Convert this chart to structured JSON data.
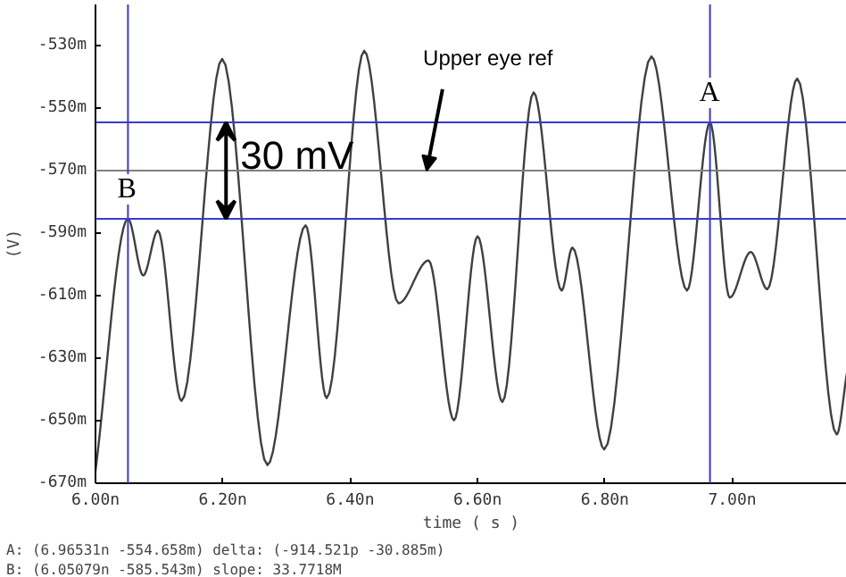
{
  "chart_data": {
    "type": "line",
    "xlabel": "time ( s )",
    "ylabel": "(V)",
    "xlim": [
      6.0,
      7.18
    ],
    "ylim": [
      -670,
      -517
    ],
    "xticks": [
      {
        "value": 6.0,
        "label": "6.00n"
      },
      {
        "value": 6.2,
        "label": "6.20n"
      },
      {
        "value": 6.4,
        "label": "6.40n"
      },
      {
        "value": 6.6,
        "label": "6.60n"
      },
      {
        "value": 6.8,
        "label": "6.80n"
      },
      {
        "value": 7.0,
        "label": "7.00n"
      }
    ],
    "yticks": [
      {
        "value": -530,
        "label": "-530m"
      },
      {
        "value": -550,
        "label": "-550m"
      },
      {
        "value": -570,
        "label": "-570m"
      },
      {
        "value": -590,
        "label": "-590m"
      },
      {
        "value": -610,
        "label": "-610m"
      },
      {
        "value": -630,
        "label": "-630m"
      },
      {
        "value": -650,
        "label": "-650m"
      },
      {
        "value": -670,
        "label": "-670m"
      }
    ],
    "series": [
      {
        "color": "#404040",
        "x": [
          6.0,
          6.051,
          6.075,
          6.098,
          6.135,
          6.199,
          6.27,
          6.33,
          6.363,
          6.422,
          6.476,
          6.523,
          6.563,
          6.6,
          6.639,
          6.688,
          6.732,
          6.749,
          6.799,
          6.873,
          6.929,
          6.965,
          6.996,
          7.029,
          7.055,
          7.102,
          7.164,
          7.18
        ],
        "values": [
          -666,
          -585.5,
          -603.6,
          -589.3,
          -643.7,
          -534.4,
          -664.2,
          -587.6,
          -642.8,
          -531.8,
          -612.5,
          -598.8,
          -649.9,
          -591.1,
          -644,
          -545.1,
          -608.4,
          -594.7,
          -659.2,
          -533.6,
          -608.4,
          -554.7,
          -610.7,
          -596.1,
          -608,
          -540.7,
          -654.4,
          -634.8
        ]
      }
    ],
    "ref_lines": [
      {
        "axis": "y",
        "value": -554.7,
        "color": "#3a3ad0"
      },
      {
        "axis": "y",
        "value": -585.5,
        "color": "#3a3ad0"
      },
      {
        "axis": "y",
        "value": -570.1,
        "color": "#808080"
      },
      {
        "axis": "x",
        "value": 6.051,
        "color": "#3a3ad0"
      },
      {
        "axis": "x",
        "value": 6.965,
        "color": "#3a3ad0"
      }
    ],
    "annotations": [
      {
        "text": "Upper eye ref",
        "x": 6.52,
        "y": -570.1
      },
      {
        "text": "30 mV",
        "x": 6.205,
        "y": -570.1
      },
      {
        "text": "A",
        "x": 6.965,
        "y": -554.7
      },
      {
        "text": "B",
        "x": 6.051,
        "y": -585.5
      },
      "A: (6.96531n -554.658m)      delta: (-914.521p -30.885m)",
      "B: (6.05079n -585.543m)      slope: 33.7718M"
    ],
    "grid": false
  }
}
